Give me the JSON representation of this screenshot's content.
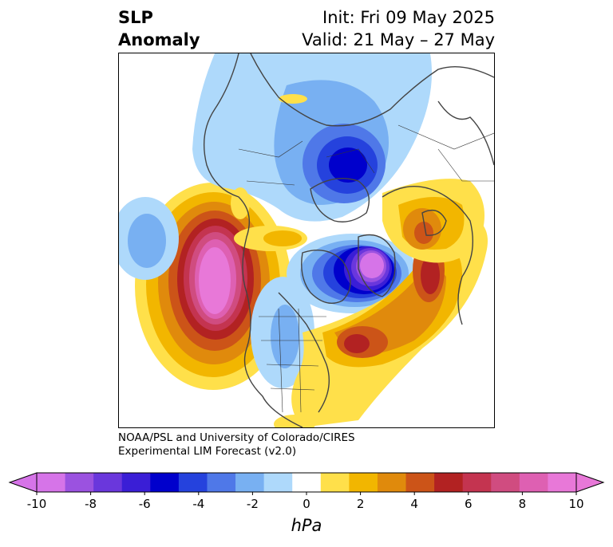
{
  "title": {
    "left_line1": "SLP",
    "left_line2": "Anomaly",
    "right_line1": "Init: Fri 09 May 2025",
    "right_line2": "Valid: 21 May – 27 May"
  },
  "credit": {
    "line1": "NOAA/PSL and University of Colorado/CIRES",
    "line2": "Experimental LIM Forecast (v2.0)"
  },
  "colorbar": {
    "unit": "hPa",
    "ticks": [
      "-10",
      "-8",
      "-6",
      "-4",
      "-2",
      "0",
      "2",
      "4",
      "6",
      "8",
      "10"
    ],
    "colors": [
      "#d674e8",
      "#9b52e0",
      "#6a37dc",
      "#3a1ed6",
      "#0000cc",
      "#2542dd",
      "#4f78e8",
      "#78b0f2",
      "#aed9fb",
      "#ffffff",
      "#ffe04a",
      "#f2b600",
      "#e08a0c",
      "#cc5418",
      "#b22222",
      "#c43450",
      "#d04c80",
      "#de60b2",
      "#e878d8"
    ],
    "under_color": "#d674e8",
    "over_color": "#e878d8"
  },
  "map": {
    "projection": "north polar stereographic",
    "anomaly_features": [
      {
        "name": "Siberian / Arctic low",
        "min_hpa": -6
      },
      {
        "name": "Hudson Bay / Labrador low",
        "min_hpa": -10
      },
      {
        "name": "North Pacific high",
        "max_hpa": 10
      },
      {
        "name": "North Atlantic high",
        "max_hpa": 6
      },
      {
        "name": "European high",
        "max_hpa": 6
      }
    ]
  }
}
